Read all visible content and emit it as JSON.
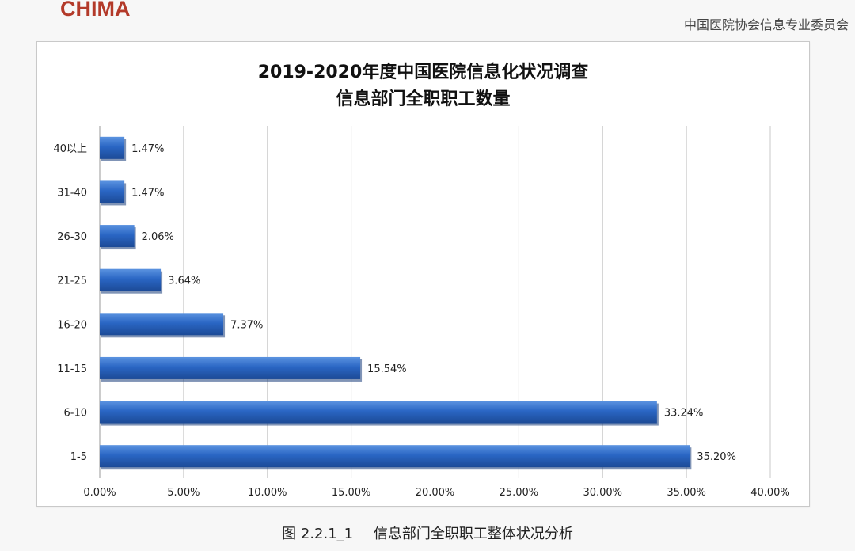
{
  "header": {
    "logo": "CHIMA",
    "organization": "中国医院协会信息专业委员会"
  },
  "caption": {
    "figure_no": "图 2.2.1_1",
    "text": "信息部门全职职工整体状况分析"
  },
  "colors": {
    "bar": "#2a66c4",
    "bar_dark": "#1c4a96",
    "bar_light": "#5b93e0",
    "grid": "#c8c8c8",
    "logo": "#b33a2a"
  },
  "chart_data": {
    "type": "bar",
    "orientation": "horizontal",
    "title": "2019-2020年度中国医院信息化状况调查",
    "subtitle": "信息部门全职职工数量",
    "categories": [
      "40以上",
      "31-40",
      "26-30",
      "21-25",
      "16-20",
      "11-15",
      "6-10",
      "1-5"
    ],
    "values": [
      1.47,
      1.47,
      2.06,
      3.64,
      7.37,
      15.54,
      33.24,
      35.2
    ],
    "data_labels": [
      "1.47%",
      "1.47%",
      "2.06%",
      "3.64%",
      "7.37%",
      "15.54%",
      "33.24%",
      "35.20%"
    ],
    "xlim": [
      0,
      40
    ],
    "x_ticks": [
      0,
      5,
      10,
      15,
      20,
      25,
      30,
      35,
      40
    ],
    "x_tick_labels": [
      "0.00%",
      "5.00%",
      "10.00%",
      "15.00%",
      "20.00%",
      "25.00%",
      "30.00%",
      "35.00%",
      "40.00%"
    ],
    "xlabel": "",
    "ylabel": "",
    "grid": true,
    "legend": false
  }
}
